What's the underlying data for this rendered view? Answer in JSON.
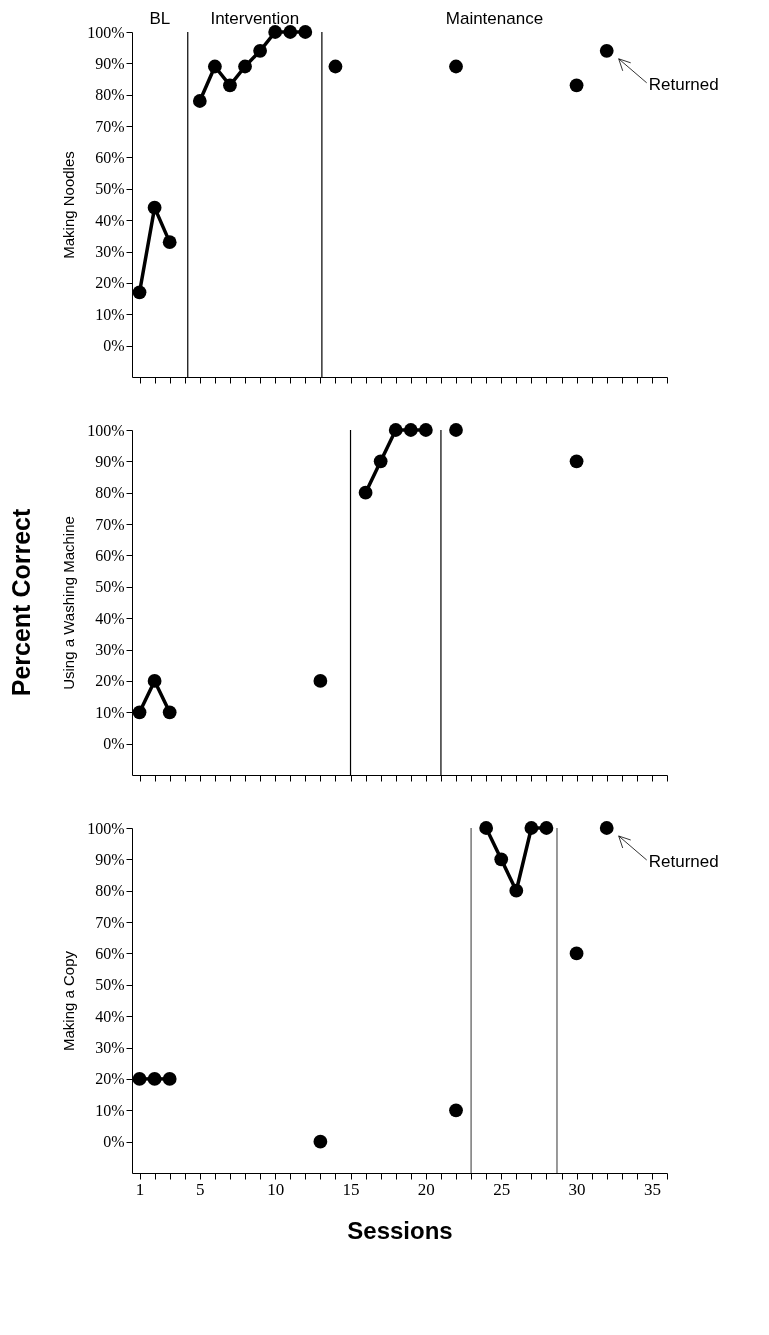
{
  "chart_data": [
    {
      "type": "line",
      "ylabel": "Making Noodles",
      "marker": "circle",
      "line_style": "solid",
      "tick_labels": "y",
      "xlim": [
        0.5,
        36
      ],
      "ylim": [
        -10,
        100
      ],
      "xticks": [
        1,
        {
          "value": 2,
          "label": null
        },
        {
          "value": 3,
          "label": null
        },
        {
          "value": 4,
          "label": null
        },
        5,
        {
          "value": 6,
          "label": null
        },
        {
          "value": 7,
          "label": null
        },
        {
          "value": 8,
          "label": null
        },
        {
          "value": 9,
          "label": null
        },
        10,
        {
          "value": 11,
          "label": null
        },
        {
          "value": 12,
          "label": null
        },
        {
          "value": 13,
          "label": null
        },
        {
          "value": 14,
          "label": null
        },
        15,
        {
          "value": 16,
          "label": null
        },
        {
          "value": 17,
          "label": null
        },
        {
          "value": 18,
          "label": null
        },
        {
          "value": 19,
          "label": null
        },
        20,
        {
          "value": 21,
          "label": null
        },
        {
          "value": 22,
          "label": null
        },
        {
          "value": 23,
          "label": null
        },
        {
          "value": 24,
          "label": null
        },
        25,
        {
          "value": 26,
          "label": null
        },
        {
          "value": 27,
          "label": null
        },
        {
          "value": 28,
          "label": null
        },
        {
          "value": 29,
          "label": null
        },
        30,
        {
          "value": 31,
          "label": null
        },
        {
          "value": 32,
          "label": null
        },
        {
          "value": 33,
          "label": null
        },
        {
          "value": 34,
          "label": null
        },
        35,
        {
          "value": 36,
          "label": null
        }
      ],
      "yticks": [
        {
          "value": 0,
          "label": "0%"
        },
        {
          "value": 10,
          "label": "10%"
        },
        {
          "value": 20,
          "label": "20%"
        },
        {
          "value": 30,
          "label": "30%"
        },
        {
          "value": 40,
          "label": "40%"
        },
        {
          "value": 50,
          "label": "50%"
        },
        {
          "value": 60,
          "label": "60%"
        },
        {
          "value": 70,
          "label": "70%"
        },
        {
          "value": 80,
          "label": "80%"
        },
        {
          "value": 90,
          "label": "90%"
        },
        {
          "value": 100,
          "label": "100%"
        }
      ],
      "series": [
        {
          "color": "#000000",
          "x": [
            1,
            2,
            3
          ],
          "values": [
            17,
            44,
            33
          ]
        },
        {
          "color": "#000000",
          "x": [
            5,
            6,
            7,
            8,
            9,
            10,
            11,
            12
          ],
          "values": [
            78,
            89,
            83,
            89,
            94,
            100,
            100,
            100
          ]
        },
        {
          "type": "scatter",
          "color": "#000000",
          "x": [
            14,
            22,
            30,
            32
          ],
          "values": [
            89,
            89,
            83,
            94
          ]
        }
      ],
      "ref_lines": [
        {
          "axis": "x",
          "value": 4.2,
          "color": "#000000"
        },
        {
          "axis": "x",
          "value": 13.1,
          "color": "#000000"
        }
      ],
      "annotations": [
        "BL",
        "Intervention",
        "Maintenance",
        {
          "text": "Returned",
          "x": 32,
          "y": 94
        }
      ]
    },
    {
      "type": "line",
      "ylabel": "Using a Washing Machine",
      "marker": "circle",
      "line_style": "solid",
      "tick_labels": "y",
      "xlim": [
        0.5,
        36
      ],
      "ylim": [
        -10,
        100
      ],
      "xticks": [
        1,
        {
          "value": 2,
          "label": null
        },
        {
          "value": 3,
          "label": null
        },
        {
          "value": 4,
          "label": null
        },
        5,
        {
          "value": 6,
          "label": null
        },
        {
          "value": 7,
          "label": null
        },
        {
          "value": 8,
          "label": null
        },
        {
          "value": 9,
          "label": null
        },
        10,
        {
          "value": 11,
          "label": null
        },
        {
          "value": 12,
          "label": null
        },
        {
          "value": 13,
          "label": null
        },
        {
          "value": 14,
          "label": null
        },
        15,
        {
          "value": 16,
          "label": null
        },
        {
          "value": 17,
          "label": null
        },
        {
          "value": 18,
          "label": null
        },
        {
          "value": 19,
          "label": null
        },
        20,
        {
          "value": 21,
          "label": null
        },
        {
          "value": 22,
          "label": null
        },
        {
          "value": 23,
          "label": null
        },
        {
          "value": 24,
          "label": null
        },
        25,
        {
          "value": 26,
          "label": null
        },
        {
          "value": 27,
          "label": null
        },
        {
          "value": 28,
          "label": null
        },
        {
          "value": 29,
          "label": null
        },
        30,
        {
          "value": 31,
          "label": null
        },
        {
          "value": 32,
          "label": null
        },
        {
          "value": 33,
          "label": null
        },
        {
          "value": 34,
          "label": null
        },
        35,
        {
          "value": 36,
          "label": null
        }
      ],
      "yticks": [
        {
          "value": 0,
          "label": "0%"
        },
        {
          "value": 10,
          "label": "10%"
        },
        {
          "value": 20,
          "label": "20%"
        },
        {
          "value": 30,
          "label": "30%"
        },
        {
          "value": 40,
          "label": "40%"
        },
        {
          "value": 50,
          "label": "50%"
        },
        {
          "value": 60,
          "label": "60%"
        },
        {
          "value": 70,
          "label": "70%"
        },
        {
          "value": 80,
          "label": "80%"
        },
        {
          "value": 90,
          "label": "90%"
        },
        {
          "value": 100,
          "label": "100%"
        }
      ],
      "series": [
        {
          "color": "#000000",
          "x": [
            1,
            2,
            3
          ],
          "values": [
            10,
            20,
            10
          ]
        },
        {
          "type": "scatter",
          "color": "#000000",
          "x": [
            13
          ],
          "values": [
            20
          ]
        },
        {
          "color": "#000000",
          "x": [
            16,
            17,
            18,
            19,
            20
          ],
          "values": [
            80,
            90,
            100,
            100,
            100
          ]
        },
        {
          "type": "scatter",
          "color": "#000000",
          "x": [
            22,
            30
          ],
          "values": [
            100,
            90
          ]
        }
      ],
      "ref_lines": [
        {
          "axis": "x",
          "value": 15,
          "color": "#000000"
        },
        {
          "axis": "x",
          "value": 21,
          "color": "#000000"
        }
      ],
      "annotations": [
        "Percent Correct"
      ]
    },
    {
      "type": "line",
      "ylabel": "Making a Copy",
      "xlabel": "Sessions",
      "marker": "circle",
      "line_style": "solid",
      "xlim": [
        0.5,
        36
      ],
      "ylim": [
        -10,
        100
      ],
      "xticks": [
        1,
        {
          "value": 2,
          "label": null
        },
        {
          "value": 3,
          "label": null
        },
        {
          "value": 4,
          "label": null
        },
        5,
        {
          "value": 6,
          "label": null
        },
        {
          "value": 7,
          "label": null
        },
        {
          "value": 8,
          "label": null
        },
        {
          "value": 9,
          "label": null
        },
        10,
        {
          "value": 11,
          "label": null
        },
        {
          "value": 12,
          "label": null
        },
        {
          "value": 13,
          "label": null
        },
        {
          "value": 14,
          "label": null
        },
        15,
        {
          "value": 16,
          "label": null
        },
        {
          "value": 17,
          "label": null
        },
        {
          "value": 18,
          "label": null
        },
        {
          "value": 19,
          "label": null
        },
        20,
        {
          "value": 21,
          "label": null
        },
        {
          "value": 22,
          "label": null
        },
        {
          "value": 23,
          "label": null
        },
        {
          "value": 24,
          "label": null
        },
        25,
        {
          "value": 26,
          "label": null
        },
        {
          "value": 27,
          "label": null
        },
        {
          "value": 28,
          "label": null
        },
        {
          "value": 29,
          "label": null
        },
        30,
        {
          "value": 31,
          "label": null
        },
        {
          "value": 32,
          "label": null
        },
        {
          "value": 33,
          "label": null
        },
        {
          "value": 34,
          "label": null
        },
        35,
        {
          "value": 36,
          "label": null
        }
      ],
      "yticks": [
        {
          "value": 0,
          "label": "0%"
        },
        {
          "value": 10,
          "label": "10%"
        },
        {
          "value": 20,
          "label": "20%"
        },
        {
          "value": 30,
          "label": "30%"
        },
        {
          "value": 40,
          "label": "40%"
        },
        {
          "value": 50,
          "label": "50%"
        },
        {
          "value": 60,
          "label": "60%"
        },
        {
          "value": 70,
          "label": "70%"
        },
        {
          "value": 80,
          "label": "80%"
        },
        {
          "value": 90,
          "label": "90%"
        },
        {
          "value": 100,
          "label": "100%"
        }
      ],
      "series": [
        {
          "color": "#000000",
          "x": [
            1,
            2,
            3
          ],
          "values": [
            20,
            20,
            20
          ]
        },
        {
          "type": "scatter",
          "color": "#000000",
          "x": [
            13,
            22
          ],
          "values": [
            0,
            10
          ]
        },
        {
          "color": "#000000",
          "x": [
            24,
            25,
            26,
            27,
            28
          ],
          "values": [
            100,
            90,
            80,
            100,
            100
          ]
        },
        {
          "type": "scatter",
          "color": "#000000",
          "x": [
            30,
            32
          ],
          "values": [
            60,
            100
          ]
        }
      ],
      "ref_lines": [
        {
          "axis": "x",
          "value": 23,
          "color": "#555555"
        },
        {
          "axis": "x",
          "value": 28.7,
          "color": "#555555"
        }
      ],
      "annotations": [
        {
          "text": "Returned",
          "x": 32,
          "y": 100
        }
      ]
    }
  ]
}
